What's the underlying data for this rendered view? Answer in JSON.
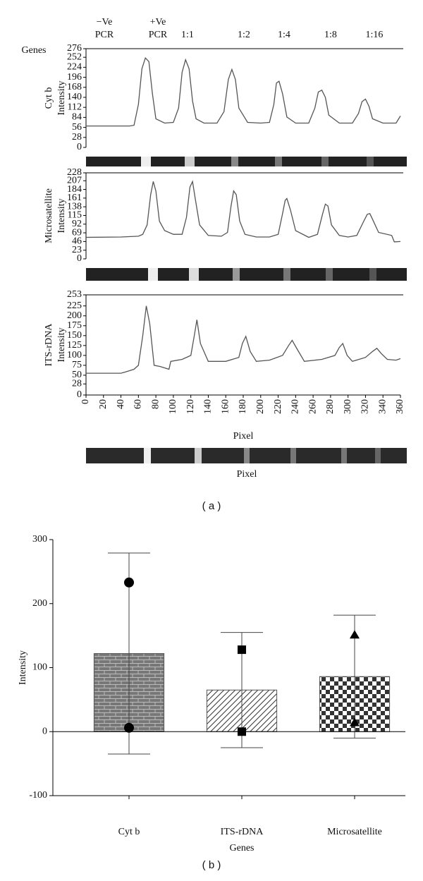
{
  "figure": {
    "genes_label": "Genes",
    "lane_labels": [
      [
        "−Ve",
        "PCR"
      ],
      [
        "+Ve",
        "PCR"
      ],
      [
        "1:1"
      ],
      [
        "1:2"
      ],
      [
        "1:4"
      ],
      [
        "1:8"
      ],
      [
        "1:16"
      ]
    ],
    "strip_label": "Pixel",
    "panel_labels": [
      "( a )",
      "( b )"
    ]
  },
  "chart_data": [
    {
      "type": "line",
      "ylabel": [
        "Cyt b",
        "Intensity"
      ],
      "color": "#555555",
      "xlim": [
        0,
        360
      ],
      "ylim": [
        0,
        276
      ],
      "yticks": [
        0,
        28,
        56,
        84,
        112,
        140,
        168,
        196,
        224,
        252,
        276
      ],
      "x": [
        0,
        50,
        55,
        60,
        64,
        68,
        72,
        76,
        80,
        90,
        100,
        106,
        110,
        114,
        118,
        122,
        126,
        135,
        150,
        158,
        163,
        167,
        171,
        175,
        185,
        200,
        210,
        215,
        218,
        221,
        225,
        230,
        240,
        255,
        262,
        266,
        270,
        274,
        278,
        290,
        305,
        312,
        316,
        320,
        324,
        328,
        340,
        355,
        360
      ],
      "values": [
        60,
        60,
        62,
        120,
        220,
        250,
        240,
        150,
        80,
        68,
        70,
        110,
        210,
        245,
        220,
        130,
        80,
        68,
        68,
        100,
        190,
        218,
        190,
        110,
        70,
        68,
        70,
        120,
        180,
        185,
        150,
        85,
        68,
        68,
        110,
        155,
        160,
        140,
        90,
        68,
        68,
        95,
        128,
        135,
        115,
        80,
        68,
        68,
        88
      ]
    },
    {
      "type": "line",
      "ylabel": [
        "Microsatellite",
        "Intensity"
      ],
      "color": "#555555",
      "xlim": [
        0,
        360
      ],
      "ylim": [
        0,
        228
      ],
      "yticks": [
        0,
        23,
        46,
        69,
        92,
        115,
        138,
        161,
        184,
        207,
        228
      ],
      "x": [
        0,
        40,
        60,
        65,
        70,
        74,
        77,
        80,
        84,
        90,
        100,
        110,
        115,
        119,
        122,
        125,
        130,
        140,
        155,
        162,
        166,
        169,
        172,
        176,
        182,
        195,
        210,
        220,
        225,
        228,
        230,
        234,
        240,
        255,
        265,
        271,
        274,
        277,
        281,
        290,
        300,
        310,
        318,
        322,
        325,
        328,
        335,
        350,
        353,
        360
      ],
      "values": [
        57,
        58,
        60,
        65,
        90,
        170,
        205,
        180,
        100,
        75,
        65,
        65,
        110,
        190,
        205,
        160,
        90,
        62,
        60,
        70,
        140,
        180,
        170,
        100,
        65,
        58,
        58,
        65,
        120,
        155,
        160,
        130,
        75,
        57,
        65,
        120,
        145,
        140,
        90,
        62,
        58,
        62,
        100,
        118,
        120,
        105,
        70,
        62,
        45,
        46
      ]
    },
    {
      "type": "line",
      "ylabel": [
        "ITS-rDNA",
        "Intensity"
      ],
      "xlabel": "Pixel",
      "color": "#555555",
      "xlim": [
        0,
        360
      ],
      "ylim": [
        0,
        253
      ],
      "yticks": [
        0,
        28,
        50,
        75,
        100,
        125,
        150,
        175,
        200,
        225,
        253
      ],
      "xticks": [
        0,
        20,
        40,
        60,
        80,
        100,
        120,
        140,
        160,
        180,
        200,
        220,
        240,
        260,
        280,
        300,
        320,
        340,
        360
      ],
      "x": [
        0,
        40,
        45,
        55,
        60,
        65,
        69,
        73,
        78,
        85,
        95,
        97,
        110,
        120,
        124,
        127,
        131,
        140,
        160,
        175,
        179,
        183,
        188,
        195,
        210,
        225,
        232,
        236,
        242,
        250,
        270,
        285,
        290,
        294,
        299,
        305,
        320,
        328,
        333,
        338,
        345,
        355,
        360
      ],
      "values": [
        55,
        55,
        58,
        65,
        75,
        150,
        225,
        180,
        75,
        72,
        65,
        85,
        90,
        100,
        150,
        190,
        130,
        85,
        85,
        95,
        130,
        148,
        110,
        85,
        88,
        100,
        125,
        138,
        115,
        85,
        90,
        100,
        120,
        130,
        100,
        85,
        95,
        110,
        118,
        105,
        90,
        88,
        92
      ]
    },
    {
      "type": "bar",
      "ylabel": "Intensity",
      "xlabel": "Genes",
      "categories": [
        "Cyt b",
        "ITS-rDNA",
        "Microsatellite"
      ],
      "values": [
        122,
        65,
        86
      ],
      "errors": [
        157,
        90,
        96
      ],
      "patterns": [
        "brick",
        "hatch",
        "checker"
      ],
      "points": [
        [
          233,
          6
        ],
        [
          128,
          0
        ],
        [
          151,
          14
        ]
      ],
      "markers": [
        "circle",
        "square",
        "triangle"
      ],
      "ylim": [
        -100,
        300
      ],
      "yticks": [
        -100,
        0,
        100,
        200,
        300
      ]
    }
  ]
}
